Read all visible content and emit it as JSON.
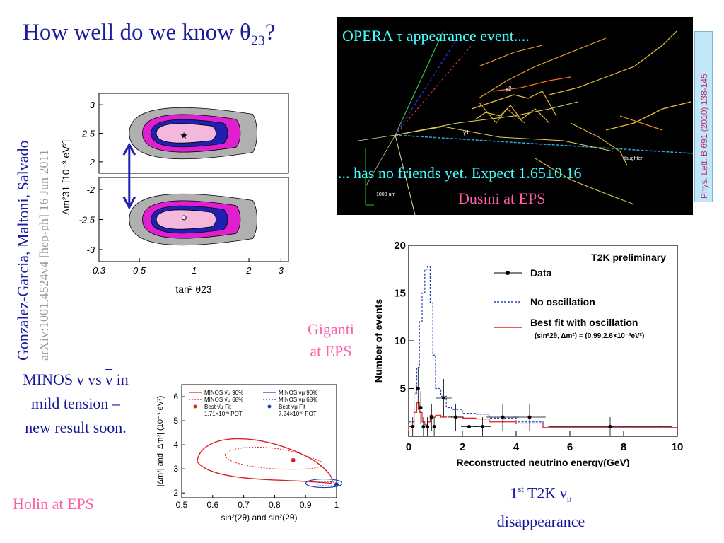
{
  "slide": {
    "title_prefix": "How well do we know θ",
    "title_sub": "23",
    "title_suffix": "?"
  },
  "authors": {
    "names": "Gonzalez-Garcia, Maltoni, Salvado",
    "ref": "arXiv:1001.4524v4  [hep-ph]  16 Jun 2011"
  },
  "opera": {
    "title": "OPERA τ appearance event....",
    "friends": "... has no friends yet.  Expect 1.65±0.16",
    "credit": "Dusini at EPS",
    "scale_label": "1000 um",
    "labels": [
      "γ2",
      "γ1",
      "daughter"
    ],
    "reference": "Phys. Lett. B 691 (2010) 138-145"
  },
  "giganti": {
    "line1": "Giganti",
    "line2": "at EPS"
  },
  "minos_text": {
    "line1a": "MINOS ν vs ",
    "line1b": "ν",
    "line1c": " in",
    "line2": "mild tension –",
    "line3": "new result soon."
  },
  "holin": "Holin at EPS",
  "t2k_caption": {
    "pre": "1",
    "sup": "st",
    "mid": " T2K ν",
    "sub": "μ",
    "line2": "disappearance"
  },
  "chart_data": [
    {
      "type": "scatter",
      "title": "",
      "xlabel": "tan² θ23",
      "ylabel": "Δm²31 [10⁻³ eV²]",
      "x_scale": "log",
      "x_ticks": [
        "0.3",
        "0.5",
        "1",
        "2",
        "3"
      ],
      "y_ticks_upper": [
        "3",
        "2.5",
        "2"
      ],
      "y_ticks_lower": [
        "-2",
        "-2.5",
        "-3"
      ],
      "best_fit_upper": {
        "x": 0.88,
        "y": 2.47
      },
      "best_fit_lower": {
        "x": 0.88,
        "y": -2.47
      },
      "contour_colors": [
        "#b0b0b0",
        "#e020d0",
        "#2020b0",
        "#f4b8dc"
      ]
    },
    {
      "type": "line",
      "title": "",
      "xlabel": "sin²(2θ) and sin²(2θ)",
      "ylabel": "|Δm²| and |Δm²| (10⁻³ eV²)",
      "xlim": [
        0.5,
        1.0
      ],
      "ylim": [
        1.8,
        6.5
      ],
      "x_ticks": [
        "0.5",
        "0.6",
        "0.7",
        "0.8",
        "0.9",
        "1"
      ],
      "y_ticks": [
        "2",
        "3",
        "4",
        "5",
        "6"
      ],
      "legend": [
        {
          "name": "MINOS ν̄μ 90%",
          "color": "#e02020",
          "style": "solid"
        },
        {
          "name": "MINOS ν̄μ 68%",
          "color": "#e02020",
          "style": "dotted"
        },
        {
          "name": "Best ν̄μ Fit",
          "color": "#e02020",
          "style": "point"
        },
        {
          "name": "1.71×10²⁰ POT",
          "color": "#000000",
          "style": "text"
        },
        {
          "name": "MINOS νμ 90%",
          "color": "#2040b0",
          "style": "solid"
        },
        {
          "name": "MINOS νμ 68%",
          "color": "#2040b0",
          "style": "dotted"
        },
        {
          "name": "Best νμ Fit",
          "color": "#2040b0",
          "style": "point"
        },
        {
          "name": "7.24×10²⁰ POT",
          "color": "#000000",
          "style": "text"
        }
      ],
      "best_fit_nubar": {
        "x": 0.86,
        "y": 3.36
      },
      "best_fit_nu": {
        "x": 1.0,
        "y": 2.35
      }
    },
    {
      "type": "line",
      "title": "T2K preliminary",
      "xlabel": "Reconstructed neutrino energy(GeV)",
      "ylabel": "Number of events",
      "xlim": [
        0,
        10
      ],
      "ylim": [
        0,
        20
      ],
      "x_ticks": [
        "0",
        "2",
        "4",
        "6",
        "8",
        "10"
      ],
      "y_ticks": [
        "5",
        "10",
        "15",
        "20"
      ],
      "legend_data": "Data",
      "legend_noosc": "No oscillation",
      "legend_fit": "Best fit with oscillation",
      "legend_fit_params": "(sin²2θ, Δm²) = (0.99,2.6×10⁻³eV²)",
      "data_points": [
        {
          "x": 0.15,
          "y": 1
        },
        {
          "x": 0.35,
          "y": 5
        },
        {
          "x": 0.45,
          "y": 3
        },
        {
          "x": 0.55,
          "y": 1
        },
        {
          "x": 0.7,
          "y": 1
        },
        {
          "x": 0.85,
          "y": 2
        },
        {
          "x": 0.95,
          "y": 1
        },
        {
          "x": 1.3,
          "y": 4
        },
        {
          "x": 1.75,
          "y": 2
        },
        {
          "x": 2.25,
          "y": 1
        },
        {
          "x": 2.75,
          "y": 1
        },
        {
          "x": 3.5,
          "y": 2
        },
        {
          "x": 4.5,
          "y": 2
        },
        {
          "x": 7.5,
          "y": 1
        }
      ],
      "no_oscillation": {
        "edges": [
          0,
          0.2,
          0.3,
          0.4,
          0.5,
          0.6,
          0.7,
          0.8,
          0.9,
          1.0,
          1.2,
          1.4,
          1.6,
          2.0,
          2.5,
          3.0,
          4.0,
          5.0,
          10.0
        ],
        "values": [
          1.5,
          4.5,
          7.2,
          12.0,
          15.0,
          17.5,
          17.8,
          14.0,
          8.5,
          5.0,
          4.2,
          3.0,
          2.8,
          2.4,
          2.3,
          1.9,
          1.5,
          0.9
        ]
      },
      "best_fit": {
        "edges": [
          0,
          0.2,
          0.3,
          0.4,
          0.5,
          0.6,
          0.7,
          0.8,
          0.9,
          1.0,
          1.2,
          1.4,
          1.6,
          2.0,
          2.5,
          3.0,
          4.0,
          5.0,
          10.0
        ],
        "values": [
          1.0,
          2.5,
          3.5,
          2.5,
          1.5,
          1.2,
          1.5,
          2.2,
          2.0,
          2.2,
          2.0,
          2.1,
          2.0,
          1.9,
          1.8,
          1.5,
          1.3,
          0.9
        ]
      }
    }
  ]
}
